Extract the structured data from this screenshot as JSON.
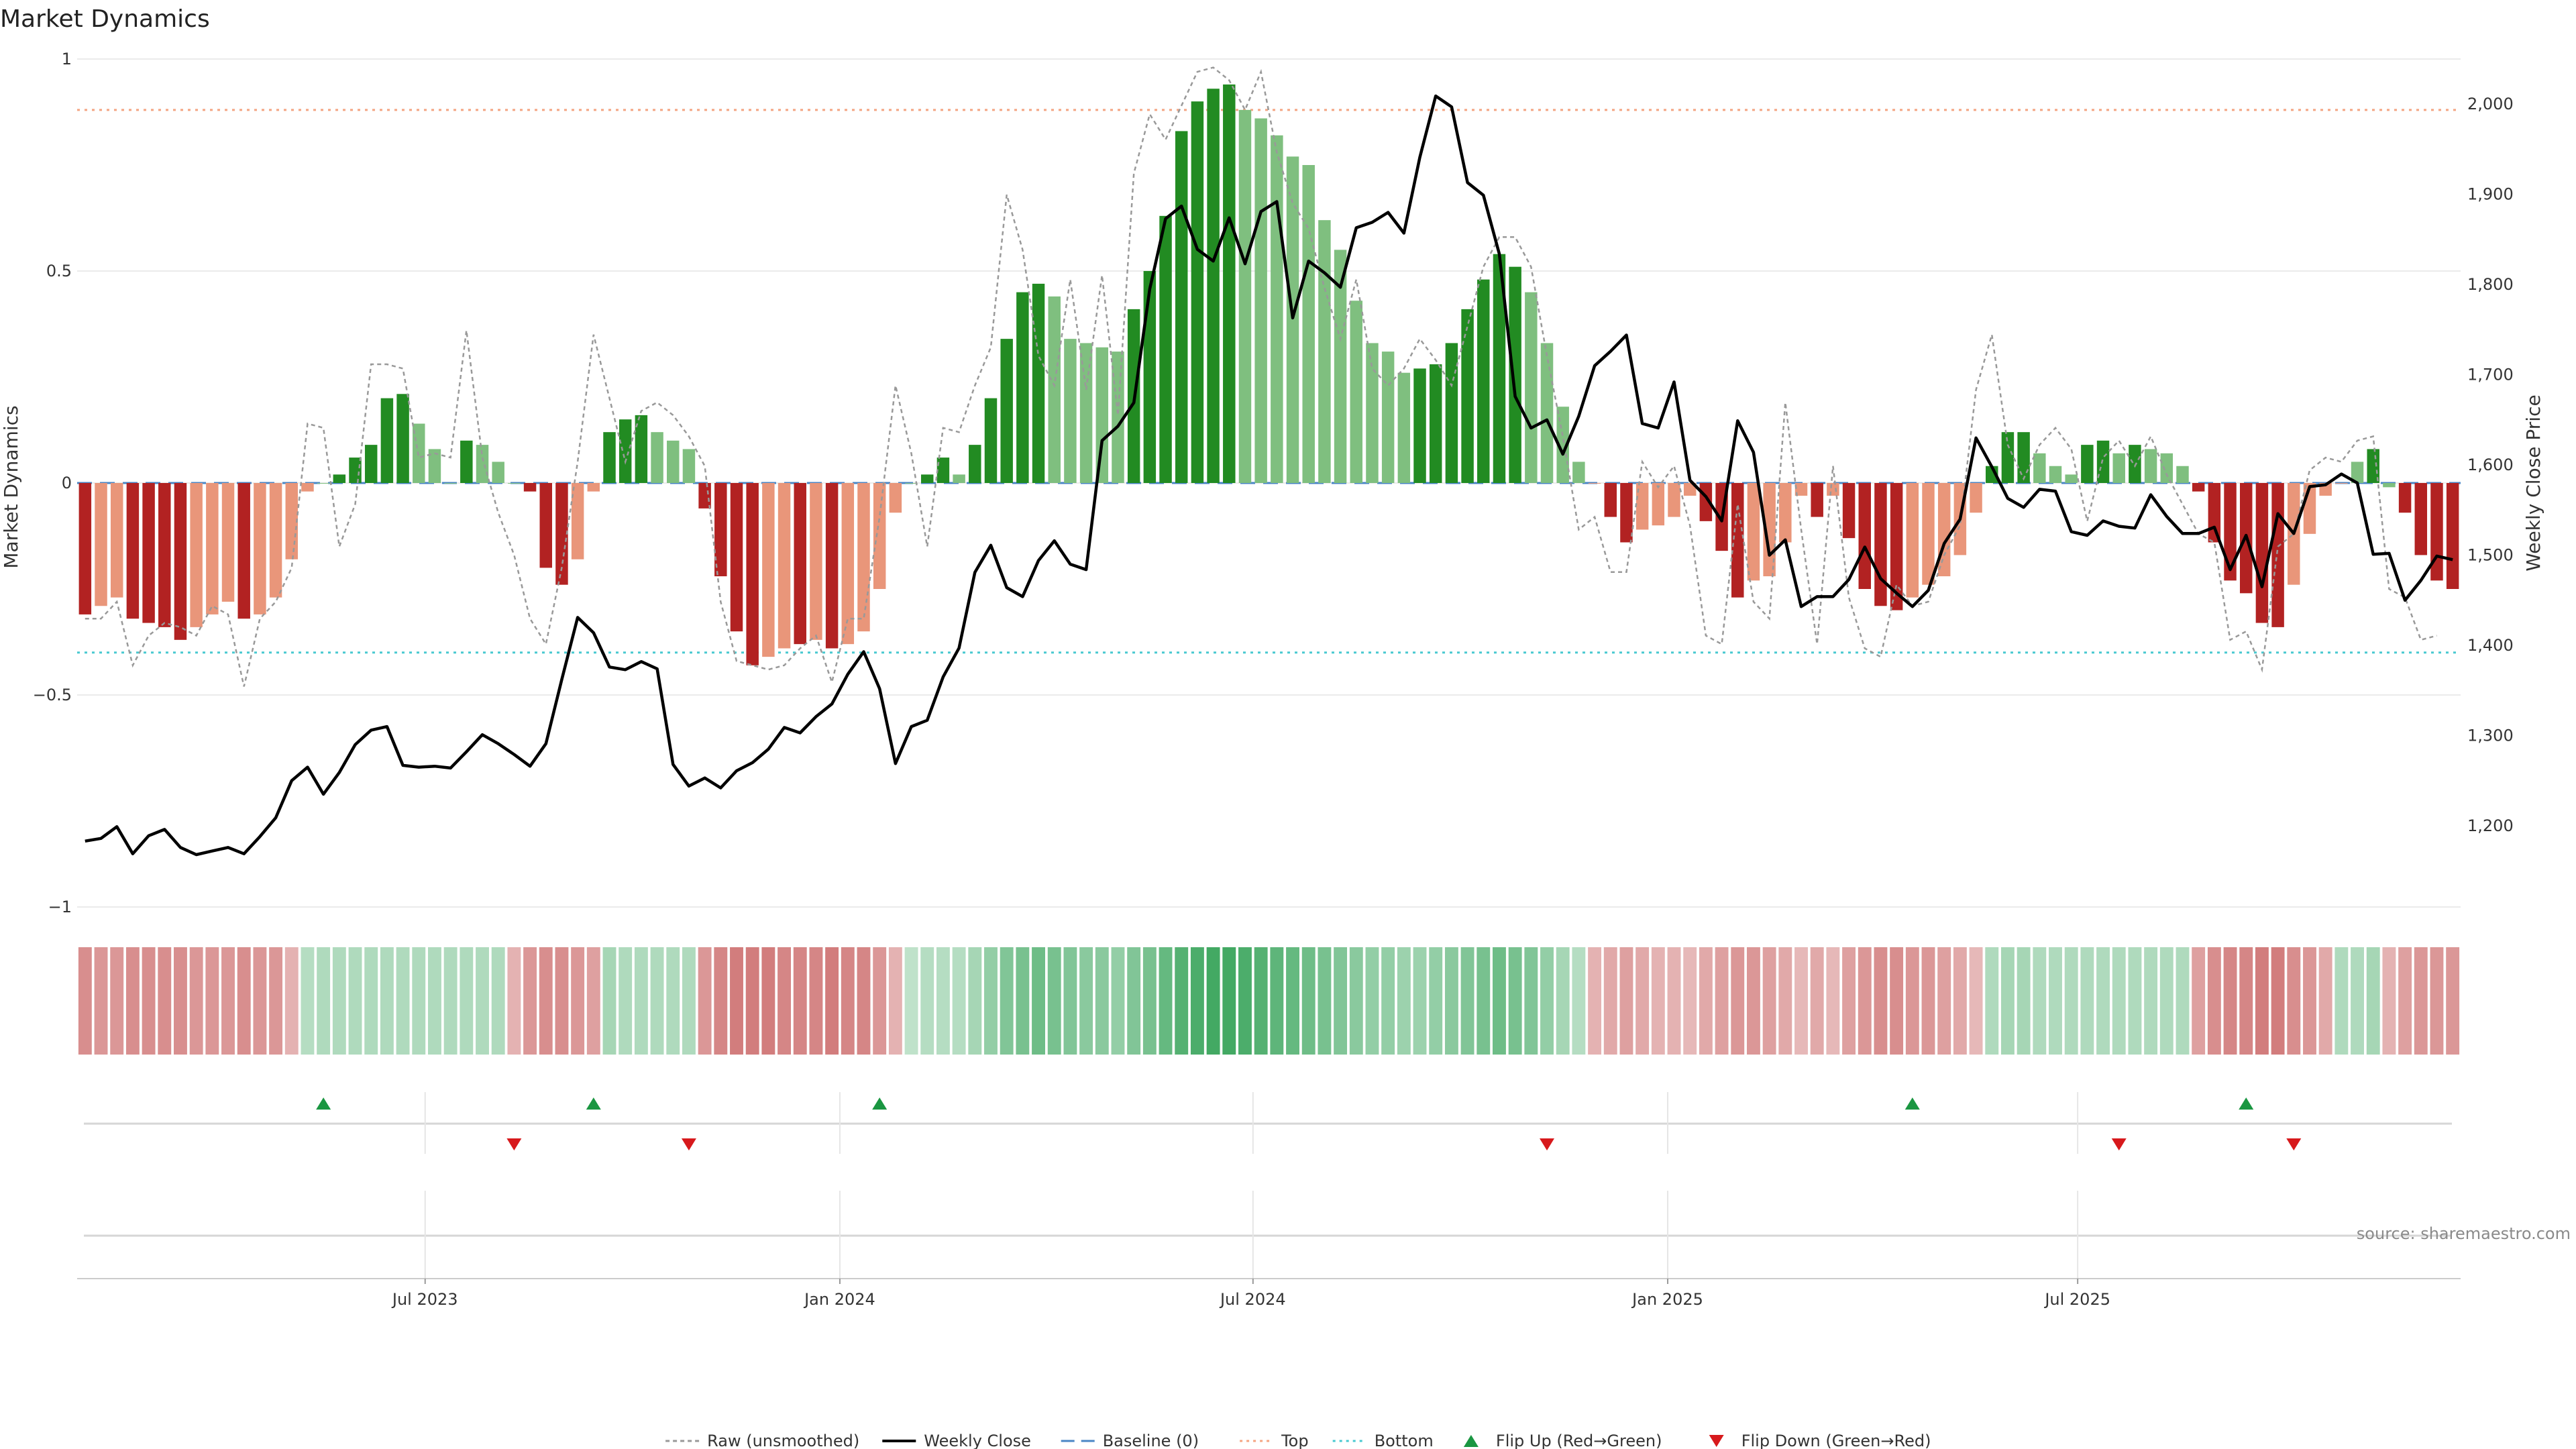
{
  "chart_data": {
    "type": "bar",
    "title": "Market Dynamics",
    "ylabel": "Market Dynamics",
    "y2label": "Weekly Close Price",
    "source": "source: sharemaestro.com",
    "ylim": [
      -1,
      1
    ],
    "y2lim": [
      1110,
      2050
    ],
    "y_ticks": [
      1,
      0.5,
      0,
      -0.5,
      -1
    ],
    "y_tick_labels": [
      "1",
      "0.5",
      "0",
      "−0.5",
      "−1"
    ],
    "y2_ticks": [
      2000,
      1900,
      1800,
      1700,
      1600,
      1500,
      1400,
      1300,
      1200
    ],
    "y2_tick_labels": [
      "2,000",
      "1,900",
      "1,800",
      "1,700",
      "1,600",
      "1,500",
      "1,400",
      "1,300",
      "1,200"
    ],
    "x_ticks": [
      {
        "label": "Jul 2023",
        "index": 21.9
      },
      {
        "label": "Jan 2024",
        "index": 48
      },
      {
        "label": "Jul 2024",
        "index": 74
      },
      {
        "label": "Jan 2025",
        "index": 100.1
      },
      {
        "label": "Jul 2025",
        "index": 125.9
      }
    ],
    "reference_lines": {
      "top": 0.88,
      "bottom": -0.4,
      "baseline": 0
    },
    "colors": {
      "dark_green": "#228b22",
      "light_green": "#7fbf7f",
      "dark_red": "#b22222",
      "light_red": "#e9967a",
      "close_line": "#000000",
      "raw_line": "#999999",
      "baseline": "#4a86c5",
      "top_line": "#f4a582",
      "bottom_line": "#48c9d0",
      "flip_up": "#1a9641",
      "flip_down": "#d7191c"
    },
    "values": [
      -0.31,
      -0.29,
      -0.27,
      -0.32,
      -0.33,
      -0.34,
      -0.37,
      -0.34,
      -0.31,
      -0.28,
      -0.32,
      -0.31,
      -0.27,
      -0.18,
      -0.02,
      0.0,
      0.02,
      0.06,
      0.09,
      0.2,
      0.21,
      0.14,
      0.08,
      0.0,
      0.1,
      0.09,
      0.05,
      0.0,
      -0.02,
      -0.2,
      -0.24,
      -0.18,
      -0.02,
      0.12,
      0.15,
      0.16,
      0.12,
      0.1,
      0.08,
      -0.06,
      -0.22,
      -0.35,
      -0.43,
      -0.41,
      -0.39,
      -0.38,
      -0.37,
      -0.39,
      -0.38,
      -0.35,
      -0.25,
      -0.07,
      0.0,
      0.02,
      0.06,
      0.02,
      0.09,
      0.2,
      0.34,
      0.45,
      0.47,
      0.44,
      0.34,
      0.33,
      0.32,
      0.31,
      0.41,
      0.5,
      0.63,
      0.83,
      0.9,
      0.93,
      0.94,
      0.88,
      0.86,
      0.82,
      0.77,
      0.75,
      0.62,
      0.55,
      0.43,
      0.33,
      0.31,
      0.26,
      0.27,
      0.28,
      0.33,
      0.41,
      0.48,
      0.54,
      0.51,
      0.45,
      0.33,
      0.18,
      0.05,
      0.0,
      -0.08,
      -0.14,
      -0.11,
      -0.1,
      -0.08,
      -0.03,
      -0.09,
      -0.16,
      -0.27,
      -0.23,
      -0.22,
      -0.14,
      -0.03,
      -0.08,
      -0.03,
      -0.13,
      -0.25,
      -0.29,
      -0.3,
      -0.27,
      -0.24,
      -0.22,
      -0.17,
      -0.07,
      0.04,
      0.12,
      0.12,
      0.07,
      0.04,
      0.02,
      0.09,
      0.1,
      0.07,
      0.09,
      0.08,
      0.07,
      0.04,
      -0.02,
      -0.14,
      -0.23,
      -0.26,
      -0.33,
      -0.34,
      -0.24,
      -0.12,
      -0.03,
      0.0,
      0.05,
      0.08,
      -0.01,
      -0.07,
      -0.17,
      -0.23,
      -0.25
    ],
    "bar_colors": [
      "dark_red",
      "light_red",
      "light_red",
      "dark_red",
      "dark_red",
      "dark_red",
      "dark_red",
      "light_red",
      "light_red",
      "light_red",
      "dark_red",
      "light_red",
      "light_red",
      "light_red",
      "light_red",
      "light_green",
      "dark_green",
      "dark_green",
      "dark_green",
      "dark_green",
      "dark_green",
      "light_green",
      "light_green",
      "light_green",
      "dark_green",
      "light_green",
      "light_green",
      "light_green",
      "dark_red",
      "dark_red",
      "dark_red",
      "light_red",
      "light_red",
      "dark_green",
      "dark_green",
      "dark_green",
      "light_green",
      "light_green",
      "light_green",
      "dark_red",
      "dark_red",
      "dark_red",
      "dark_red",
      "light_red",
      "light_red",
      "dark_red",
      "light_red",
      "dark_red",
      "light_red",
      "light_red",
      "light_red",
      "light_red",
      "light_green",
      "dark_green",
      "dark_green",
      "light_green",
      "dark_green",
      "dark_green",
      "dark_green",
      "dark_green",
      "dark_green",
      "light_green",
      "light_green",
      "light_green",
      "light_green",
      "light_green",
      "dark_green",
      "dark_green",
      "dark_green",
      "dark_green",
      "dark_green",
      "dark_green",
      "dark_green",
      "light_green",
      "light_green",
      "light_green",
      "light_green",
      "light_green",
      "light_green",
      "light_green",
      "light_green",
      "light_green",
      "light_green",
      "light_green",
      "dark_green",
      "dark_green",
      "dark_green",
      "dark_green",
      "dark_green",
      "dark_green",
      "dark_green",
      "light_green",
      "light_green",
      "light_green",
      "light_green",
      "light_red",
      "dark_red",
      "dark_red",
      "light_red",
      "light_red",
      "light_red",
      "light_red",
      "dark_red",
      "dark_red",
      "dark_red",
      "light_red",
      "light_red",
      "light_red",
      "light_red",
      "dark_red",
      "light_red",
      "dark_red",
      "dark_red",
      "dark_red",
      "dark_red",
      "light_red",
      "light_red",
      "light_red",
      "light_red",
      "light_red",
      "dark_green",
      "dark_green",
      "dark_green",
      "light_green",
      "light_green",
      "light_green",
      "dark_green",
      "dark_green",
      "light_green",
      "dark_green",
      "light_green",
      "light_green",
      "light_green",
      "dark_red",
      "dark_red",
      "dark_red",
      "dark_red",
      "dark_red",
      "dark_red",
      "light_red",
      "light_red",
      "light_red",
      "light_red",
      "light_green",
      "dark_green",
      "light_green",
      "dark_red",
      "dark_red",
      "dark_red",
      "dark_red"
    ],
    "raw_values": [
      -0.32,
      -0.32,
      -0.28,
      -0.43,
      -0.36,
      -0.33,
      -0.34,
      -0.36,
      -0.29,
      -0.31,
      -0.48,
      -0.32,
      -0.28,
      -0.2,
      0.14,
      0.13,
      -0.15,
      -0.05,
      0.28,
      0.28,
      0.27,
      0.06,
      0.07,
      0.06,
      0.36,
      0.06,
      -0.07,
      -0.17,
      -0.32,
      -0.38,
      -0.2,
      0.05,
      0.35,
      0.2,
      0.05,
      0.17,
      0.19,
      0.16,
      0.11,
      0.04,
      -0.28,
      -0.42,
      -0.43,
      -0.44,
      -0.43,
      -0.39,
      -0.36,
      -0.47,
      -0.32,
      -0.32,
      -0.08,
      0.23,
      0.07,
      -0.15,
      0.13,
      0.12,
      0.23,
      0.32,
      0.68,
      0.55,
      0.3,
      0.23,
      0.48,
      0.22,
      0.49,
      0.16,
      0.73,
      0.87,
      0.81,
      0.89,
      0.97,
      0.98,
      0.95,
      0.88,
      0.97,
      0.78,
      0.66,
      0.6,
      0.46,
      0.34,
      0.48,
      0.27,
      0.23,
      0.27,
      0.34,
      0.29,
      0.23,
      0.37,
      0.51,
      0.58,
      0.58,
      0.51,
      0.3,
      0.11,
      -0.11,
      -0.08,
      -0.21,
      -0.21,
      0.05,
      -0.01,
      0.04,
      -0.1,
      -0.36,
      -0.38,
      -0.05,
      -0.28,
      -0.32,
      0.19,
      -0.11,
      -0.38,
      0.04,
      -0.27,
      -0.39,
      -0.41,
      -0.24,
      -0.29,
      -0.28,
      -0.17,
      -0.1,
      0.22,
      0.35,
      0.09,
      0.01,
      0.09,
      0.13,
      0.08,
      -0.09,
      0.06,
      0.1,
      0.04,
      0.11,
      0.02,
      -0.05,
      -0.12,
      -0.14,
      -0.37,
      -0.35,
      -0.44,
      -0.15,
      -0.12,
      0.03,
      0.06,
      0.05,
      0.1,
      0.11,
      -0.25,
      -0.27,
      -0.37,
      -0.36
    ],
    "weekly_close": [
      1183,
      1186,
      1199,
      1169,
      1189,
      1196,
      1176,
      1168,
      1172,
      1176,
      1169,
      1188,
      1209,
      1250,
      1265,
      1235,
      1259,
      1290,
      1306,
      1310,
      1267,
      1265,
      1266,
      1264,
      1282,
      1301,
      1291,
      1279,
      1266,
      1291,
      1362,
      1431,
      1414,
      1376,
      1373,
      1382,
      1374,
      1268,
      1244,
      1253,
      1242,
      1261,
      1270,
      1285,
      1309,
      1303,
      1321,
      1335,
      1368,
      1393,
      1352,
      1269,
      1310,
      1317,
      1365,
      1397,
      1481,
      1511,
      1464,
      1454,
      1494,
      1516,
      1490,
      1484,
      1627,
      1643,
      1669,
      1795,
      1873,
      1887,
      1839,
      1826,
      1874,
      1823,
      1881,
      1892,
      1763,
      1826,
      1813,
      1797,
      1863,
      1869,
      1880,
      1857,
      1941,
      2009,
      1997,
      1913,
      1899,
      1834,
      1676,
      1641,
      1650,
      1612,
      1654,
      1710,
      1726,
      1744,
      1646,
      1641,
      1692,
      1583,
      1565,
      1538,
      1649,
      1614,
      1500,
      1517,
      1443,
      1454,
      1454,
      1473,
      1509,
      1474,
      1458,
      1443,
      1461,
      1513,
      1540,
      1630,
      1598,
      1563,
      1553,
      1573,
      1571,
      1526,
      1522,
      1538,
      1532,
      1530,
      1567,
      1543,
      1524,
      1524,
      1531,
      1484,
      1522,
      1465,
      1546,
      1524,
      1576,
      1578,
      1590,
      1580,
      1501,
      1502,
      1450,
      1472,
      1499,
      1495
    ]
  },
  "tiles": {
    "levels": [
      -0.5,
      -0.45,
      -0.45,
      -0.5,
      -0.5,
      -0.5,
      -0.5,
      -0.45,
      -0.45,
      -0.45,
      -0.5,
      -0.45,
      -0.45,
      -0.3,
      0.25,
      0.3,
      0.3,
      0.3,
      0.3,
      0.3,
      0.3,
      0.3,
      0.3,
      0.3,
      0.3,
      0.3,
      0.3,
      -0.3,
      -0.45,
      -0.5,
      -0.5,
      -0.45,
      -0.4,
      0.35,
      0.3,
      0.3,
      0.3,
      0.3,
      0.3,
      -0.45,
      -0.55,
      -0.6,
      -0.6,
      -0.6,
      -0.55,
      -0.55,
      -0.55,
      -0.6,
      -0.55,
      -0.55,
      -0.45,
      -0.3,
      0.2,
      0.25,
      0.25,
      0.25,
      0.35,
      0.45,
      0.55,
      0.6,
      0.65,
      0.6,
      0.55,
      0.5,
      0.5,
      0.45,
      0.55,
      0.6,
      0.7,
      0.8,
      0.85,
      0.9,
      0.9,
      0.85,
      0.8,
      0.75,
      0.7,
      0.65,
      0.6,
      0.55,
      0.5,
      0.45,
      0.45,
      0.4,
      0.4,
      0.45,
      0.5,
      0.55,
      0.6,
      0.65,
      0.6,
      0.55,
      0.45,
      0.35,
      0.25,
      -0.3,
      -0.35,
      -0.4,
      -0.35,
      -0.3,
      -0.3,
      -0.25,
      -0.35,
      -0.4,
      -0.45,
      -0.45,
      -0.4,
      -0.35,
      -0.25,
      -0.35,
      -0.25,
      -0.4,
      -0.45,
      -0.5,
      -0.5,
      -0.45,
      -0.45,
      -0.4,
      -0.35,
      -0.25,
      0.3,
      0.35,
      0.35,
      0.3,
      0.3,
      0.3,
      0.3,
      0.3,
      0.3,
      0.3,
      0.3,
      0.3,
      0.3,
      -0.4,
      -0.5,
      -0.55,
      -0.55,
      -0.6,
      -0.6,
      -0.5,
      -0.45,
      -0.35,
      0.3,
      0.3,
      0.35,
      -0.3,
      -0.4,
      -0.45,
      -0.45,
      -0.45
    ]
  },
  "flips": {
    "up": [
      15,
      32,
      50,
      115,
      136
    ],
    "down": [
      27,
      38,
      92,
      128,
      139
    ]
  },
  "legend": [
    {
      "label": "Raw (unsmoothed)",
      "kind": "raw"
    },
    {
      "label": "Weekly Close",
      "kind": "close"
    },
    {
      "label": "Baseline (0)",
      "kind": "baseline"
    },
    {
      "label": "Top",
      "kind": "top"
    },
    {
      "label": "Bottom",
      "kind": "bottom"
    },
    {
      "label": "Flip Up (Red→Green)",
      "kind": "flip_up"
    },
    {
      "label": "Flip Down (Green→Red)",
      "kind": "flip_down"
    }
  ]
}
